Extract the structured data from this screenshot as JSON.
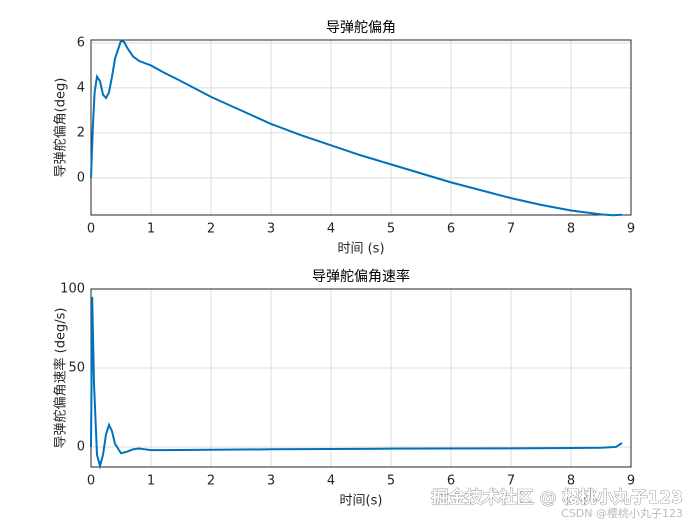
{
  "chart_data": [
    {
      "type": "line",
      "title": "导弹舵偏角",
      "x_label": "时间 (s)",
      "y_label": "导弹舵偏角(deg)",
      "x": [
        0,
        0.03,
        0.06,
        0.1,
        0.15,
        0.2,
        0.25,
        0.3,
        0.35,
        0.4,
        0.5,
        0.55,
        0.6,
        0.7,
        0.8,
        0.9,
        1.0,
        1.2,
        1.5,
        2,
        2.5,
        3,
        3.5,
        4,
        4.5,
        5,
        5.5,
        6,
        6.5,
        7,
        7.5,
        8,
        8.5,
        8.7,
        8.85
      ],
      "series": [
        {
          "name": "导弹舵偏角",
          "color": "#0072bd",
          "values": [
            0,
            2.2,
            3.8,
            4.5,
            4.3,
            3.7,
            3.55,
            3.8,
            4.5,
            5.3,
            6.1,
            6.05,
            5.8,
            5.4,
            5.2,
            5.1,
            5.0,
            4.7,
            4.3,
            3.6,
            3.0,
            2.4,
            1.9,
            1.45,
            1.0,
            0.6,
            0.2,
            -0.2,
            -0.55,
            -0.9,
            -1.2,
            -1.45,
            -1.62,
            -1.66,
            -1.64
          ]
        }
      ],
      "xlim": [
        0,
        9
      ],
      "xticks": [
        0,
        1,
        2,
        3,
        4,
        5,
        6,
        7,
        8,
        9
      ],
      "ylim": [
        -1.65,
        6.13
      ],
      "yticks": [
        0,
        2,
        4,
        6
      ],
      "grid": true
    },
    {
      "type": "line",
      "title": "导弹舵偏角速率",
      "x_label": "时间(s)",
      "y_label": "导弹舵偏角速率 (deg/s)",
      "x": [
        0,
        0.02,
        0.05,
        0.1,
        0.15,
        0.2,
        0.25,
        0.3,
        0.35,
        0.4,
        0.5,
        0.6,
        0.7,
        0.8,
        0.9,
        1.0,
        1.2,
        2,
        3,
        4,
        5,
        6,
        7,
        8,
        8.5,
        8.75,
        8.85
      ],
      "series": [
        {
          "name": "导弹舵偏角速率",
          "color": "#0072bd",
          "values": [
            0,
            95,
            40,
            -5,
            -12,
            -5,
            8,
            14,
            10,
            2,
            -4,
            -3,
            -1.5,
            -1,
            -1.5,
            -2,
            -2,
            -1.8,
            -1.5,
            -1.3,
            -1.1,
            -1.0,
            -0.9,
            -0.7,
            -0.5,
            0,
            2.5
          ]
        }
      ],
      "xlim": [
        0,
        9
      ],
      "xticks": [
        0,
        1,
        2,
        3,
        4,
        5,
        6,
        7,
        8,
        9
      ],
      "ylim": [
        -12.7,
        100
      ],
      "yticks": [
        0,
        50,
        100
      ],
      "grid": true
    }
  ],
  "watermark": {
    "main": "掘金技术社区 @ 樱桃小丸子123",
    "sub": "CSDN @樱桃小丸子123"
  }
}
